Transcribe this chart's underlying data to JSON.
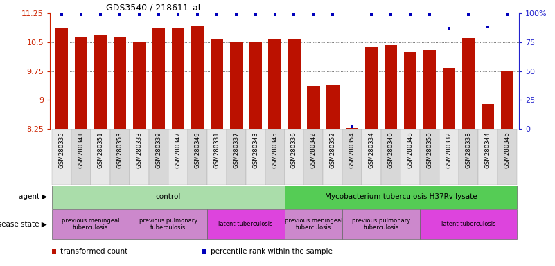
{
  "title": "GDS3540 / 218611_at",
  "samples": [
    "GSM280335",
    "GSM280341",
    "GSM280351",
    "GSM280353",
    "GSM280333",
    "GSM280339",
    "GSM280347",
    "GSM280349",
    "GSM280331",
    "GSM280337",
    "GSM280343",
    "GSM280345",
    "GSM280336",
    "GSM280342",
    "GSM280352",
    "GSM280354",
    "GSM280334",
    "GSM280340",
    "GSM280348",
    "GSM280350",
    "GSM280332",
    "GSM280338",
    "GSM280344",
    "GSM280346"
  ],
  "bar_values": [
    10.88,
    10.65,
    10.67,
    10.63,
    10.5,
    10.88,
    10.88,
    10.92,
    10.58,
    10.52,
    10.52,
    10.57,
    10.57,
    9.37,
    9.4,
    8.27,
    10.38,
    10.42,
    10.25,
    10.3,
    9.84,
    10.6,
    8.9,
    9.77
  ],
  "percentile_values": [
    99,
    99,
    99,
    99,
    99,
    99,
    99,
    99,
    99,
    99,
    99,
    99,
    99,
    99,
    99,
    2,
    99,
    99,
    99,
    99,
    87,
    99,
    88,
    99
  ],
  "ymin": 8.25,
  "ymax": 11.25,
  "yticks": [
    8.25,
    9.0,
    9.75,
    10.5,
    11.25
  ],
  "ytick_labels": [
    "8.25",
    "9",
    "9.75",
    "10.5",
    "11.25"
  ],
  "y2min": 0,
  "y2max": 100,
  "y2ticks": [
    0,
    25,
    50,
    75,
    100
  ],
  "y2tick_labels": [
    "0",
    "25",
    "50",
    "75",
    "100%"
  ],
  "bar_color": "#bb1100",
  "dot_color": "#0000bb",
  "left_tick_color": "#cc2200",
  "right_tick_color": "#2222cc",
  "grid_color": "#444444",
  "bg_color": "#ffffff",
  "agent_groups": [
    {
      "label": "control",
      "start": 0,
      "end": 11,
      "color": "#aaddaa"
    },
    {
      "label": "Mycobacterium tuberculosis H37Rv lysate",
      "start": 12,
      "end": 23,
      "color": "#55cc55"
    }
  ],
  "disease_groups": [
    {
      "label": "previous meningeal\ntuberculosis",
      "start": 0,
      "end": 3,
      "color": "#cc88cc"
    },
    {
      "label": "previous pulmonary\ntuberculosis",
      "start": 4,
      "end": 7,
      "color": "#cc88cc"
    },
    {
      "label": "latent tuberculosis",
      "start": 8,
      "end": 11,
      "color": "#dd44dd"
    },
    {
      "label": "previous meningeal\ntuberculosis",
      "start": 12,
      "end": 14,
      "color": "#cc88cc"
    },
    {
      "label": "previous pulmonary\ntuberculosis",
      "start": 15,
      "end": 18,
      "color": "#cc88cc"
    },
    {
      "label": "latent tuberculosis",
      "start": 19,
      "end": 23,
      "color": "#dd44dd"
    }
  ],
  "legend_items": [
    {
      "label": "transformed count",
      "color": "#bb1100"
    },
    {
      "label": "percentile rank within the sample",
      "color": "#0000bb"
    }
  ]
}
